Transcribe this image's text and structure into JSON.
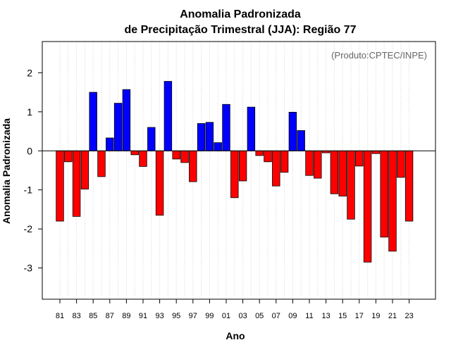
{
  "chart_data": {
    "type": "bar",
    "title": "Anomalia Padronizada",
    "subtitle": "de Precipitação Trimestral (JJA): Região 77",
    "xlabel": "Ano",
    "ylabel": "Anomalia Padronizada",
    "annotation": "(Produto:CPTEC/INPE)",
    "ylim": [
      -3.8,
      2.8
    ],
    "yticks": [
      2,
      1,
      0,
      -1,
      -2,
      -3
    ],
    "ytick_labels": [
      "2",
      "1",
      "0",
      "-1",
      "-2",
      "-3"
    ],
    "years": [
      1981,
      1982,
      1983,
      1984,
      1985,
      1986,
      1987,
      1988,
      1989,
      1990,
      1991,
      1992,
      1993,
      1994,
      1995,
      1996,
      1997,
      1998,
      1999,
      2000,
      2001,
      2002,
      2003,
      2004,
      2005,
      2006,
      2007,
      2008,
      2009,
      2010,
      2011,
      2012,
      2013,
      2014,
      2015,
      2016,
      2017,
      2018,
      2019,
      2020,
      2021,
      2022,
      2023
    ],
    "values": [
      -1.8,
      -0.28,
      -1.68,
      -0.98,
      1.5,
      -0.66,
      0.33,
      1.22,
      1.57,
      -0.1,
      -0.4,
      0.6,
      -1.65,
      1.78,
      -0.21,
      -0.3,
      -0.79,
      0.7,
      0.73,
      0.21,
      1.19,
      -1.2,
      -0.77,
      1.12,
      -0.12,
      -0.28,
      -0.9,
      -0.55,
      0.99,
      0.52,
      -0.63,
      -0.7,
      -0.05,
      -1.1,
      -1.16,
      -1.75,
      -0.39,
      -2.85,
      -0.07,
      -2.21,
      -2.57,
      -0.68,
      -1.8
    ],
    "xtick_labels": [
      "81",
      "83",
      "85",
      "87",
      "89",
      "91",
      "93",
      "95",
      "97",
      "99",
      "01",
      "03",
      "05",
      "07",
      "09",
      "11",
      "13",
      "15",
      "17",
      "19",
      "21",
      "23"
    ],
    "colors": {
      "positive": "#0000ff",
      "negative": "#ff0000",
      "grid": "#d3d3d3",
      "zero_line": "#000000",
      "bar_border": "#000000"
    },
    "grid": true
  }
}
